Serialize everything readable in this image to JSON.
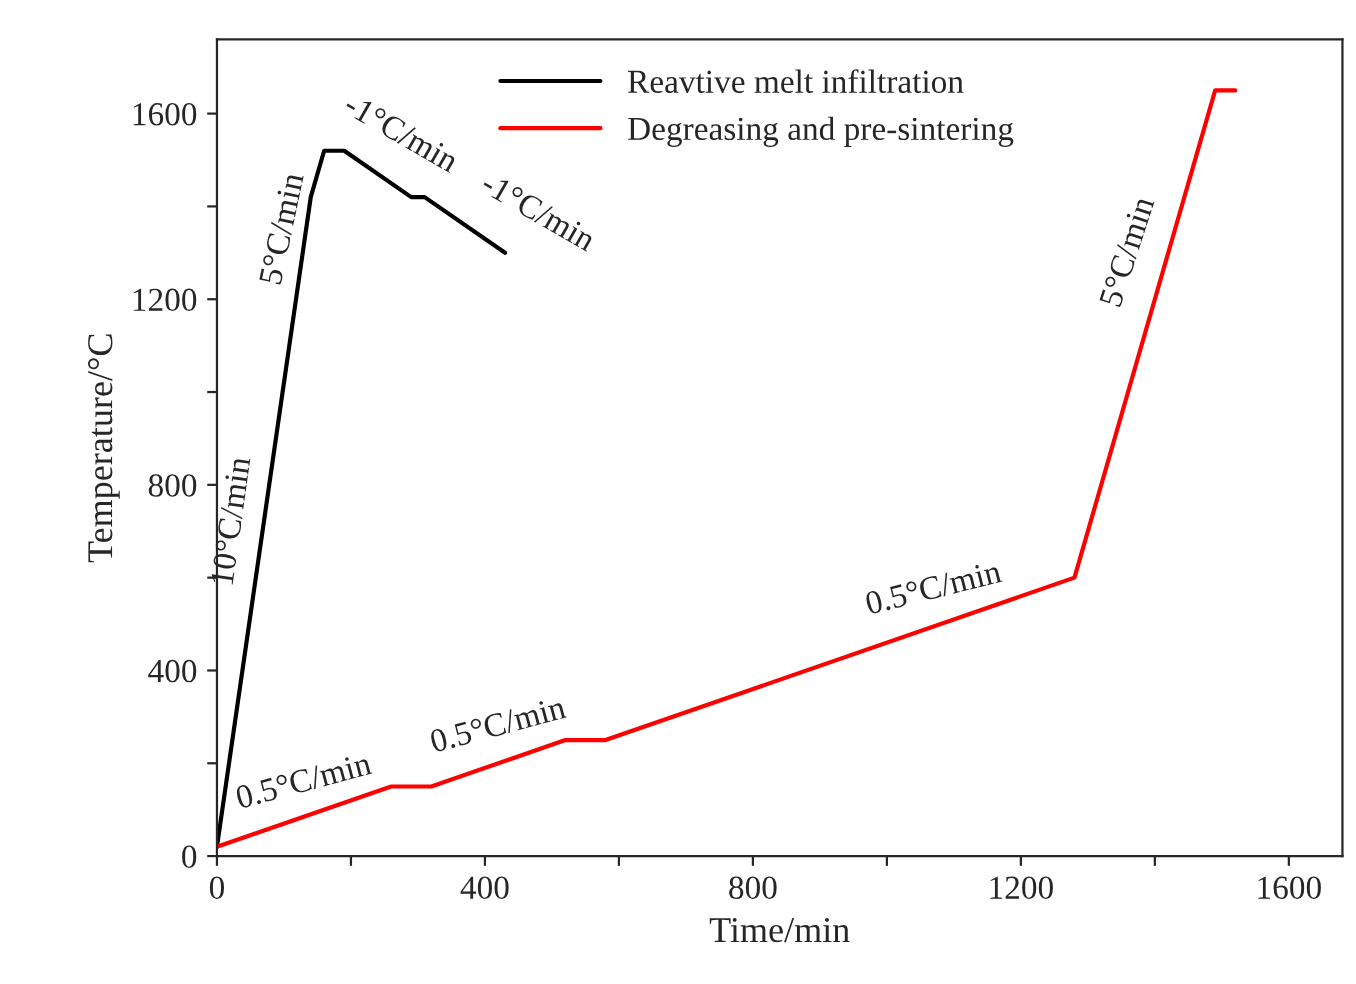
{
  "chart_data": {
    "type": "line",
    "xlabel": "Time/min",
    "ylabel": "Temperature/°C",
    "series": [
      {
        "name": "Reavtive melt infiltration",
        "color": "#000000",
        "x": [
          0,
          140,
          160,
          190,
          290,
          310,
          430
        ],
        "values": [
          20,
          1420,
          1520,
          1520,
          1420,
          1420,
          1300
        ]
      },
      {
        "name": "Degreasing and pre-sintering",
        "color": "#ff0000",
        "x": [
          0,
          260,
          320,
          520,
          580,
          1280,
          1490,
          1520
        ],
        "values": [
          20,
          150,
          150,
          250,
          250,
          600,
          1650,
          1650
        ]
      }
    ],
    "xlim": [
      0,
      1680
    ],
    "ylim": [
      0,
      1760
    ],
    "xticks": [
      0,
      {
        "value": 200,
        "label": null
      },
      400,
      {
        "value": 600,
        "label": null
      },
      800,
      {
        "value": 1000,
        "label": null
      },
      1200,
      {
        "value": 1400,
        "label": null
      },
      1600
    ],
    "yticks": [
      0,
      {
        "value": 200,
        "label": null
      },
      400,
      {
        "value": 600,
        "label": null
      },
      800,
      {
        "value": 1000,
        "label": null
      },
      1200,
      {
        "value": 1400,
        "label": null
      },
      1600
    ],
    "annotations": [
      {
        "text": "10°C/min",
        "x": 70,
        "y": 720
      },
      {
        "text": "5°C/min",
        "x": 150,
        "y": 1470
      },
      {
        "text": "-1°C/min",
        "x": 240,
        "y": 1470
      },
      {
        "text": "-1°C/min",
        "x": 370,
        "y": 1360
      },
      {
        "text": "0.5°C/min",
        "x": 130,
        "y": 85
      },
      {
        "text": "0.5°C/min",
        "x": 420,
        "y": 200
      },
      {
        "text": "0.5°C/min",
        "x": 1070,
        "y": 495
      },
      {
        "text": "5°C/min",
        "x": 1420,
        "y": 1300
      }
    ],
    "legend": "top",
    "grid": false,
    "marker": "none",
    "line_style": "solid"
  }
}
